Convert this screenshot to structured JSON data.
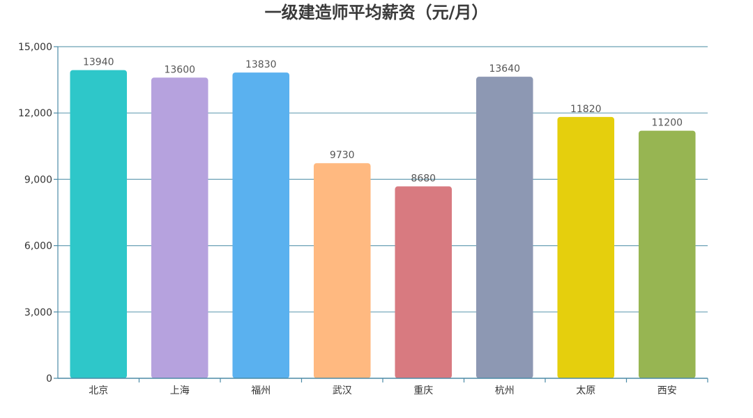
{
  "chart_data": {
    "type": "bar",
    "title": "一级建造师平均薪资（元/月）",
    "categories": [
      "北京",
      "上海",
      "福州",
      "武汉",
      "重庆",
      "杭州",
      "太原",
      "西安"
    ],
    "values": [
      13940,
      13600,
      13830,
      9730,
      8680,
      13640,
      11820,
      11200
    ],
    "colors": [
      "#2ec7c9",
      "#b6a2de",
      "#5ab1ef",
      "#ffb980",
      "#d87a80",
      "#8d98b3",
      "#e5cf0d",
      "#97b552"
    ],
    "ylim": [
      0,
      15000
    ],
    "yticks": [
      0,
      3000,
      6000,
      9000,
      12000,
      15000
    ],
    "ytick_labels": [
      "0",
      "3,000",
      "6,000",
      "9,000",
      "12,000",
      "15,000"
    ],
    "grid": true,
    "gridline_color": "#6aa0b5",
    "axis_color": "#4b8aa6"
  }
}
